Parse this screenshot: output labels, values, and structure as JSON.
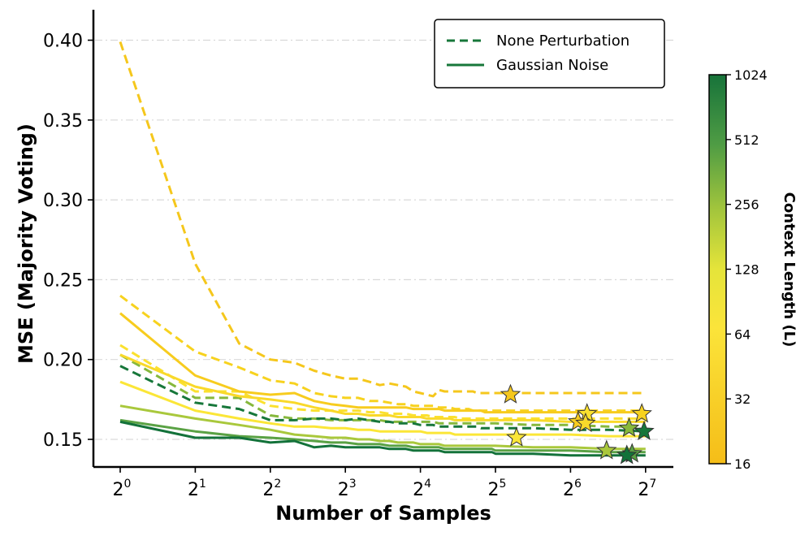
{
  "chart_data": {
    "type": "line",
    "xlabel": "Number of Samples",
    "ylabel": "MSE (Majority Voting)",
    "x_scale": "log2",
    "xlim": [
      0.0,
      7.4
    ],
    "ylim": [
      0.134,
      0.42
    ],
    "x_ticks": [
      {
        "exp": 0,
        "base": "2",
        "power": "0"
      },
      {
        "exp": 1,
        "base": "2",
        "power": "1"
      },
      {
        "exp": 2,
        "base": "2",
        "power": "2"
      },
      {
        "exp": 3,
        "base": "2",
        "power": "3"
      },
      {
        "exp": 4,
        "base": "2",
        "power": "4"
      },
      {
        "exp": 5,
        "base": "2",
        "power": "5"
      },
      {
        "exp": 6,
        "base": "2",
        "power": "6"
      },
      {
        "exp": 7,
        "base": "2",
        "power": "7"
      }
    ],
    "y_ticks": [
      0.15,
      0.2,
      0.25,
      0.3,
      0.35,
      0.4
    ],
    "y_tick_labels": [
      "0.15",
      "0.20",
      "0.25",
      "0.30",
      "0.35",
      "0.40"
    ],
    "grid": "horizontal",
    "legend": {
      "placement": "top-right",
      "entries": [
        {
          "label": "None Perturbation",
          "style": "dashed",
          "color": "#17773a"
        },
        {
          "label": "Gaussian Noise",
          "style": "solid",
          "color": "#17773a"
        }
      ]
    },
    "colorbar": {
      "label": "Context Length (L)",
      "ticks": [
        "16",
        "32",
        "64",
        "128",
        "256",
        "512",
        "1024"
      ],
      "colors": [
        "#f5bd18",
        "#fbe43a",
        "#c9d83a",
        "#86b83c",
        "#3c9442",
        "#17773a"
      ]
    },
    "x": [
      0,
      1,
      1.585,
      2,
      2.322,
      2.585,
      2.807,
      3,
      3.17,
      3.322,
      3.459,
      3.585,
      3.7,
      3.807,
      3.907,
      4,
      4.087,
      4.17,
      4.248,
      4.322,
      4.392,
      4.459,
      4.524,
      4.585,
      4.644,
      4.7,
      4.755,
      4.807,
      4.858,
      4.907,
      4.954,
      5,
      5.5,
      6,
      6.5,
      7
    ],
    "series": [
      {
        "name": "None Perturbation L=16",
        "style": "dashed",
        "color": "#f5c71c",
        "values": [
          0.399,
          0.26,
          0.21,
          0.2,
          0.198,
          0.193,
          0.19,
          0.188,
          0.188,
          0.186,
          0.184,
          0.185,
          0.184,
          0.183,
          0.18,
          0.179,
          0.178,
          0.177,
          0.181,
          0.18,
          0.18,
          0.18,
          0.18,
          0.18,
          0.18,
          0.18,
          0.179,
          0.179,
          0.179,
          0.179,
          0.179,
          0.179,
          0.179,
          0.179,
          0.179,
          0.179
        ],
        "star": {
          "x": 5.2,
          "y": 0.178
        }
      },
      {
        "name": "None Perturbation L=24",
        "style": "dashed",
        "color": "#f7d21e",
        "values": [
          0.24,
          0.205,
          0.195,
          0.187,
          0.185,
          0.179,
          0.177,
          0.176,
          0.176,
          0.174,
          0.174,
          0.173,
          0.172,
          0.172,
          0.171,
          0.171,
          0.171,
          0.171,
          0.17,
          0.17,
          0.17,
          0.169,
          0.169,
          0.169,
          0.169,
          0.168,
          0.168,
          0.168,
          0.168,
          0.168,
          0.168,
          0.168,
          0.168,
          0.168,
          0.168,
          0.168
        ],
        "star": {
          "x": 6.95,
          "y": 0.166
        }
      },
      {
        "name": "None Perturbation L=48",
        "style": "dashed",
        "color": "#fbe12e",
        "values": [
          0.209,
          0.18,
          0.18,
          0.171,
          0.169,
          0.168,
          0.168,
          0.168,
          0.168,
          0.167,
          0.167,
          0.166,
          0.166,
          0.166,
          0.165,
          0.165,
          0.165,
          0.164,
          0.164,
          0.164,
          0.164,
          0.164,
          0.163,
          0.163,
          0.163,
          0.163,
          0.163,
          0.163,
          0.163,
          0.163,
          0.163,
          0.163,
          0.163,
          0.163,
          0.163,
          0.163
        ],
        "star": {
          "x": 6.22,
          "y": 0.166
        }
      },
      {
        "name": "None Perturbation L=192",
        "style": "dashed",
        "color": "#86b83c",
        "values": [
          0.203,
          0.176,
          0.176,
          0.165,
          0.163,
          0.163,
          0.162,
          0.162,
          0.162,
          0.162,
          0.162,
          0.161,
          0.161,
          0.161,
          0.161,
          0.161,
          0.161,
          0.161,
          0.16,
          0.16,
          0.16,
          0.16,
          0.16,
          0.16,
          0.16,
          0.16,
          0.16,
          0.16,
          0.16,
          0.16,
          0.16,
          0.16,
          0.159,
          0.159,
          0.158,
          0.158
        ],
        "star": {
          "x": 6.78,
          "y": 0.157
        }
      },
      {
        "name": "None Perturbation L=1024",
        "style": "dashed",
        "color": "#17773a",
        "values": [
          0.196,
          0.173,
          0.169,
          0.162,
          0.162,
          0.163,
          0.163,
          0.162,
          0.163,
          0.162,
          0.161,
          0.161,
          0.16,
          0.16,
          0.16,
          0.159,
          0.159,
          0.159,
          0.158,
          0.158,
          0.158,
          0.158,
          0.158,
          0.158,
          0.158,
          0.158,
          0.158,
          0.157,
          0.157,
          0.157,
          0.157,
          0.157,
          0.157,
          0.156,
          0.156,
          0.155
        ],
        "star": {
          "x": 6.98,
          "y": 0.155
        }
      },
      {
        "name": "Gaussian Noise L=16",
        "style": "solid",
        "color": "#f7cc1e",
        "values": [
          0.229,
          0.19,
          0.18,
          0.178,
          0.179,
          0.174,
          0.172,
          0.171,
          0.17,
          0.17,
          0.17,
          0.17,
          0.17,
          0.17,
          0.169,
          0.169,
          0.169,
          0.169,
          0.169,
          0.168,
          0.168,
          0.168,
          0.168,
          0.168,
          0.168,
          0.168,
          0.168,
          0.168,
          0.167,
          0.167,
          0.167,
          0.167,
          0.167,
          0.167,
          0.167,
          0.167
        ],
        "star": {
          "x": 6.1,
          "y": 0.161
        }
      },
      {
        "name": "Gaussian Noise L=32",
        "style": "solid",
        "color": "#f9d92a",
        "values": [
          0.203,
          0.183,
          0.177,
          0.175,
          0.173,
          0.17,
          0.168,
          0.166,
          0.166,
          0.165,
          0.165,
          0.165,
          0.164,
          0.164,
          0.164,
          0.164,
          0.163,
          0.163,
          0.163,
          0.163,
          0.163,
          0.162,
          0.162,
          0.162,
          0.162,
          0.162,
          0.162,
          0.162,
          0.162,
          0.162,
          0.162,
          0.162,
          0.162,
          0.161,
          0.161,
          0.161
        ],
        "star": {
          "x": 6.2,
          "y": 0.16
        }
      },
      {
        "name": "Gaussian Noise L=96",
        "style": "solid",
        "color": "#fbe637",
        "values": [
          0.186,
          0.168,
          0.163,
          0.16,
          0.158,
          0.158,
          0.157,
          0.157,
          0.156,
          0.156,
          0.155,
          0.155,
          0.155,
          0.155,
          0.155,
          0.155,
          0.154,
          0.154,
          0.154,
          0.154,
          0.154,
          0.153,
          0.153,
          0.153,
          0.153,
          0.153,
          0.153,
          0.153,
          0.153,
          0.153,
          0.153,
          0.153,
          0.153,
          0.153,
          0.152,
          0.152
        ],
        "star": {
          "x": 5.28,
          "y": 0.151
        }
      },
      {
        "name": "Gaussian Noise L=256",
        "style": "solid",
        "color": "#a9c83c",
        "values": [
          0.171,
          0.163,
          0.159,
          0.156,
          0.153,
          0.152,
          0.151,
          0.151,
          0.15,
          0.15,
          0.149,
          0.149,
          0.148,
          0.148,
          0.148,
          0.147,
          0.147,
          0.147,
          0.147,
          0.146,
          0.146,
          0.146,
          0.146,
          0.146,
          0.146,
          0.146,
          0.146,
          0.146,
          0.146,
          0.146,
          0.146,
          0.146,
          0.145,
          0.145,
          0.144,
          0.144
        ],
        "star": {
          "x": 6.48,
          "y": 0.143
        }
      },
      {
        "name": "Gaussian Noise L=512",
        "style": "solid",
        "color": "#5aa244",
        "values": [
          0.162,
          0.155,
          0.152,
          0.151,
          0.15,
          0.149,
          0.148,
          0.148,
          0.147,
          0.147,
          0.147,
          0.146,
          0.146,
          0.146,
          0.145,
          0.145,
          0.145,
          0.145,
          0.145,
          0.144,
          0.144,
          0.144,
          0.144,
          0.144,
          0.144,
          0.144,
          0.144,
          0.144,
          0.144,
          0.144,
          0.144,
          0.143,
          0.143,
          0.143,
          0.142,
          0.142
        ],
        "star": {
          "x": 6.82,
          "y": 0.141
        }
      },
      {
        "name": "Gaussian Noise L=1024",
        "style": "solid",
        "color": "#13723a",
        "values": [
          0.161,
          0.151,
          0.151,
          0.148,
          0.149,
          0.145,
          0.146,
          0.145,
          0.145,
          0.145,
          0.145,
          0.144,
          0.144,
          0.144,
          0.143,
          0.143,
          0.143,
          0.143,
          0.143,
          0.142,
          0.142,
          0.142,
          0.142,
          0.142,
          0.142,
          0.142,
          0.142,
          0.142,
          0.142,
          0.142,
          0.142,
          0.141,
          0.141,
          0.14,
          0.14,
          0.14
        ],
        "star": {
          "x": 6.75,
          "y": 0.14
        }
      }
    ]
  }
}
